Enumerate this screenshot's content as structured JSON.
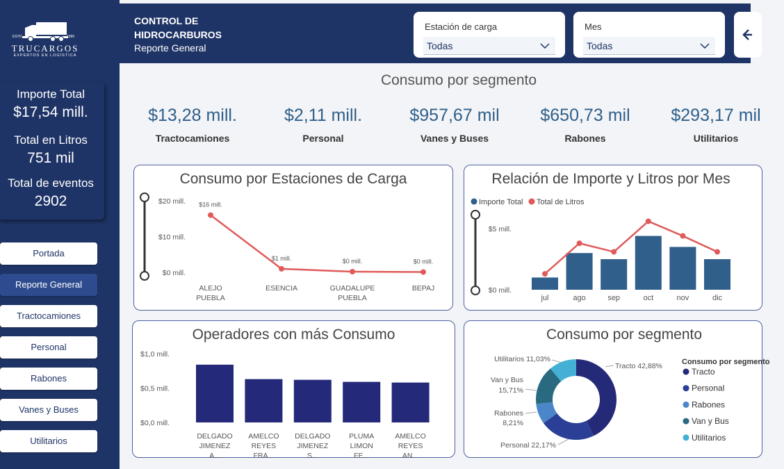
{
  "logo": {
    "brand": "TRUCARGOS",
    "tagline": "EXPERTOS EN LOGÍSTICA",
    "est": "ESTD",
    "year": "1990"
  },
  "totals": {
    "importe_label": "Importe Total",
    "importe_value": "$17,54 mill.",
    "litros_label": "Total en Litros",
    "litros_value": "751 mil",
    "eventos_label": "Total de eventos",
    "eventos_value": "2902"
  },
  "nav": [
    "Portada",
    "Reporte General",
    "Tractocamiones",
    "Personal",
    "Rabones",
    "Vanes y Buses",
    "Utilitarios"
  ],
  "header": {
    "title": "CONTROL DE HIDROCARBUROS",
    "subtitle": "Reporte General",
    "filter1_label": "Estación de carga",
    "filter1_value": "Todas",
    "filter2_label": "Mes",
    "filter2_value": "Todas"
  },
  "segment": {
    "title": "Consumo por segmento",
    "kpis": [
      {
        "value": "$13,28 mill.",
        "label": "Tractocamiones"
      },
      {
        "value": "$2,11 mill.",
        "label": "Personal"
      },
      {
        "value": "$957,67 mil",
        "label": "Vanes y Buses"
      },
      {
        "value": "$650,73 mil",
        "label": "Rabones"
      },
      {
        "value": "$293,17 mil",
        "label": "Utilitarios"
      }
    ]
  },
  "colors": {
    "navy": "#1f3466",
    "line_red": "#e05a5a",
    "bar_blue": "#2f5f8a",
    "bar_navy": "#25297a"
  },
  "chart_data": [
    {
      "type": "line",
      "title": "Consumo por Estaciones de Carga",
      "categories": [
        "ALEJO PUEBLA",
        "ESENCIA",
        "GUADALUPE PUEBLA",
        "BEPAJ"
      ],
      "values": [
        16,
        1,
        0.2,
        0.1
      ],
      "data_labels": [
        "$16 mill.",
        "$1 mill.",
        "$0 mill.",
        "$0 mill."
      ],
      "yticks": [
        "$0 mill.",
        "$10 mill.",
        "$20 mill."
      ],
      "ylim": [
        0,
        20
      ]
    },
    {
      "type": "bar",
      "title": "Relación de Importe y Litros por Mes",
      "categories": [
        "jul",
        "ago",
        "sep",
        "oct",
        "nov",
        "dic"
      ],
      "series": [
        {
          "name": "Importe Total",
          "values": [
            1.0,
            3.0,
            2.5,
            4.4,
            3.5,
            2.5
          ],
          "color": "#2f5f8a"
        },
        {
          "name": "Total de Litros",
          "values": [
            1.3,
            3.8,
            3.1,
            5.6,
            4.4,
            3.1
          ],
          "color": "#e05a5a"
        }
      ],
      "yticks": [
        "$0 mill.",
        "$5 mill."
      ],
      "ylim": [
        0,
        6.5
      ]
    },
    {
      "type": "bar",
      "title": "Operadores con más Consumo",
      "categories": [
        "DELGADO JIMENEZ A...",
        "AMELCO REYES FRA...",
        "DELGADO JIMENEZ S...",
        "PLUMA LIMON FE...",
        "AMELCO REYES AN..."
      ],
      "values": [
        0.84,
        0.63,
        0.62,
        0.59,
        0.58
      ],
      "yticks": [
        "$0,0 mill.",
        "$0,5 mill.",
        "$1,0 mill."
      ],
      "ylim": [
        0,
        1.0
      ]
    },
    {
      "type": "pie",
      "title": "Consumo por segmento",
      "legend_title": "Consumo por segmento",
      "legend": [
        "Tracto",
        "Personal",
        "Rabones",
        "Van y Bus",
        "Utilitarios"
      ],
      "slices": [
        {
          "name": "Tracto",
          "value": 42.88,
          "color": "#252a78"
        },
        {
          "name": "Personal",
          "value": 22.17,
          "color": "#2a3f95"
        },
        {
          "name": "Rabones",
          "value": 8.21,
          "color": "#4a86c8"
        },
        {
          "name": "Van y Bus",
          "value": 15.71,
          "color": "#2a6a80"
        },
        {
          "name": "Utilitarios",
          "value": 11.03,
          "color": "#45b0d6"
        }
      ],
      "slice_labels": [
        "Tracto 42,88%",
        "Personal 22,17%",
        "Rabones",
        "8,21%",
        "Van y Bus",
        "15,71%",
        "Utilitarios 11,03%"
      ]
    }
  ]
}
